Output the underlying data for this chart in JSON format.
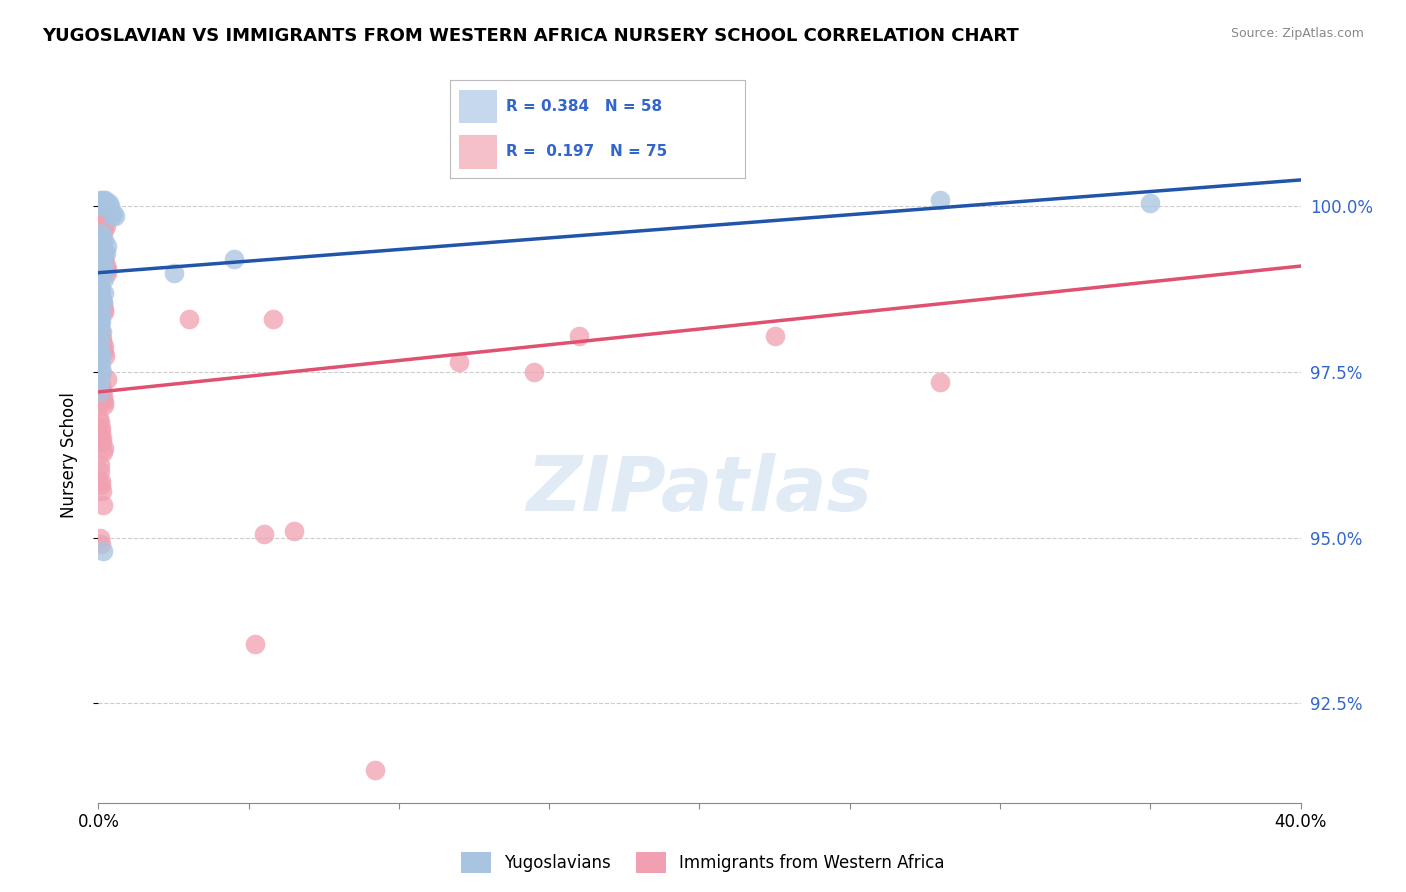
{
  "title": "YUGOSLAVIAN VS IMMIGRANTS FROM WESTERN AFRICA NURSERY SCHOOL CORRELATION CHART",
  "source": "Source: ZipAtlas.com",
  "ylabel": "Nursery School",
  "ytick_values": [
    92.5,
    95.0,
    97.5,
    100.0
  ],
  "xlim": [
    0.0,
    40.0
  ],
  "ylim": [
    91.0,
    101.5
  ],
  "blue_R": 0.384,
  "blue_N": 58,
  "pink_R": 0.197,
  "pink_N": 75,
  "blue_color": "#A8C4E0",
  "blue_line_color": "#2255AA",
  "pink_color": "#F0A0B0",
  "pink_line_color": "#E05070",
  "blue_scatter": [
    [
      0.05,
      100.1
    ],
    [
      0.08,
      100.05
    ],
    [
      0.1,
      100.0
    ],
    [
      0.12,
      100.05
    ],
    [
      0.15,
      100.1
    ],
    [
      0.18,
      100.0
    ],
    [
      0.2,
      100.05
    ],
    [
      0.22,
      100.1
    ],
    [
      0.25,
      100.05
    ],
    [
      0.3,
      100.0
    ],
    [
      0.35,
      100.05
    ],
    [
      0.4,
      100.0
    ],
    [
      0.45,
      99.85
    ],
    [
      0.5,
      99.9
    ],
    [
      0.55,
      99.85
    ],
    [
      0.08,
      99.6
    ],
    [
      0.1,
      99.5
    ],
    [
      0.12,
      99.55
    ],
    [
      0.15,
      99.4
    ],
    [
      0.18,
      99.35
    ],
    [
      0.2,
      99.5
    ],
    [
      0.25,
      99.3
    ],
    [
      0.3,
      99.4
    ],
    [
      0.06,
      99.1
    ],
    [
      0.08,
      99.0
    ],
    [
      0.1,
      99.15
    ],
    [
      0.12,
      99.2
    ],
    [
      0.15,
      99.0
    ],
    [
      0.18,
      99.1
    ],
    [
      0.2,
      98.9
    ],
    [
      0.05,
      98.7
    ],
    [
      0.06,
      98.8
    ],
    [
      0.08,
      98.65
    ],
    [
      0.1,
      98.75
    ],
    [
      0.12,
      98.6
    ],
    [
      0.15,
      98.55
    ],
    [
      0.18,
      98.7
    ],
    [
      0.04,
      98.3
    ],
    [
      0.05,
      98.4
    ],
    [
      0.06,
      98.2
    ],
    [
      0.08,
      98.35
    ],
    [
      0.1,
      98.25
    ],
    [
      0.12,
      98.1
    ],
    [
      0.03,
      97.9
    ],
    [
      0.04,
      97.8
    ],
    [
      0.05,
      97.95
    ],
    [
      0.06,
      97.7
    ],
    [
      0.08,
      97.6
    ],
    [
      0.1,
      97.75
    ],
    [
      0.12,
      97.5
    ],
    [
      0.03,
      97.3
    ],
    [
      0.04,
      97.4
    ],
    [
      0.05,
      97.2
    ],
    [
      0.15,
      94.8
    ],
    [
      2.5,
      99.0
    ],
    [
      4.5,
      99.2
    ],
    [
      35.0,
      100.05
    ],
    [
      28.0,
      100.1
    ]
  ],
  "pink_scatter": [
    [
      0.05,
      99.85
    ],
    [
      0.08,
      99.8
    ],
    [
      0.1,
      99.75
    ],
    [
      0.12,
      99.85
    ],
    [
      0.15,
      99.7
    ],
    [
      0.18,
      99.75
    ],
    [
      0.2,
      99.65
    ],
    [
      0.25,
      99.7
    ],
    [
      0.06,
      99.5
    ],
    [
      0.08,
      99.45
    ],
    [
      0.1,
      99.4
    ],
    [
      0.12,
      99.35
    ],
    [
      0.15,
      99.3
    ],
    [
      0.18,
      99.25
    ],
    [
      0.2,
      99.2
    ],
    [
      0.22,
      99.15
    ],
    [
      0.25,
      99.1
    ],
    [
      0.28,
      99.05
    ],
    [
      0.3,
      99.0
    ],
    [
      0.04,
      98.75
    ],
    [
      0.06,
      98.7
    ],
    [
      0.08,
      98.6
    ],
    [
      0.1,
      98.65
    ],
    [
      0.12,
      98.5
    ],
    [
      0.15,
      98.55
    ],
    [
      0.18,
      98.4
    ],
    [
      0.2,
      98.45
    ],
    [
      0.03,
      98.2
    ],
    [
      0.05,
      98.15
    ],
    [
      0.07,
      98.0
    ],
    [
      0.09,
      98.1
    ],
    [
      0.11,
      97.95
    ],
    [
      0.13,
      98.0
    ],
    [
      0.15,
      97.85
    ],
    [
      0.17,
      97.9
    ],
    [
      0.19,
      97.8
    ],
    [
      0.21,
      97.75
    ],
    [
      0.02,
      97.55
    ],
    [
      0.04,
      97.5
    ],
    [
      0.06,
      97.4
    ],
    [
      0.08,
      97.45
    ],
    [
      0.1,
      97.3
    ],
    [
      0.12,
      97.25
    ],
    [
      0.14,
      97.1
    ],
    [
      0.16,
      97.15
    ],
    [
      0.18,
      97.0
    ],
    [
      0.2,
      97.05
    ],
    [
      0.03,
      96.8
    ],
    [
      0.05,
      96.75
    ],
    [
      0.07,
      96.6
    ],
    [
      0.09,
      96.65
    ],
    [
      0.11,
      96.5
    ],
    [
      0.13,
      96.45
    ],
    [
      0.15,
      96.3
    ],
    [
      0.17,
      96.35
    ],
    [
      0.04,
      96.1
    ],
    [
      0.06,
      96.0
    ],
    [
      0.08,
      95.8
    ],
    [
      0.1,
      95.85
    ],
    [
      0.12,
      95.7
    ],
    [
      0.14,
      95.5
    ],
    [
      0.05,
      95.0
    ],
    [
      0.07,
      94.9
    ],
    [
      0.3,
      97.4
    ],
    [
      5.5,
      95.05
    ],
    [
      6.5,
      95.1
    ],
    [
      3.0,
      98.3
    ],
    [
      16.0,
      98.05
    ],
    [
      9.2,
      91.5
    ],
    [
      5.2,
      93.4
    ],
    [
      5.8,
      98.3
    ],
    [
      12.0,
      97.65
    ],
    [
      14.5,
      97.5
    ],
    [
      22.5,
      98.05
    ],
    [
      28.0,
      97.35
    ]
  ],
  "watermark_text": "ZIPatlas",
  "legend_box_color_blue": "#C5D8EE",
  "legend_box_color_pink": "#F5C0C8",
  "legend_text_color": "#3366CC",
  "right_axis_color": "#3366CC",
  "grid_color": "#CCCCCC",
  "blue_label": "Yugoslavians",
  "pink_label": "Immigrants from Western Africa"
}
